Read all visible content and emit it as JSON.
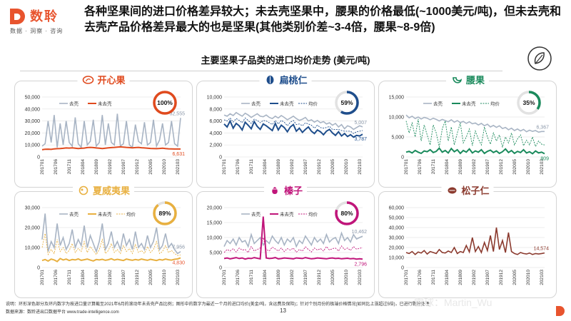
{
  "header": {
    "brand": "数聆",
    "tagline": "数据 · 洞察 · 咨询",
    "headline": "各种坚果间的进口价格差异较大；未去壳坚果中，腰果的价格最低(~1000美元/吨)，但未去壳和去壳产品价格差异最大的也是坚果(其他类别价差~3-4倍，腰果~8-9倍)",
    "subtitle": "主要坚果子品类的进口均价走势 (美元/吨)"
  },
  "colors": {
    "accent": "#e8542e",
    "shelled": "#a8b4c4"
  },
  "x_tick_labels": [
    "201701",
    "201706",
    "201711",
    "201804",
    "201809",
    "201902",
    "201907",
    "201912",
    "202005",
    "202010",
    "202103"
  ],
  "legend": {
    "shelled": "去壳",
    "unshelled": "未去壳",
    "avg": "均价"
  },
  "panels": [
    {
      "id": "pistachio",
      "title": "开心果",
      "icon": "pistachio-icon",
      "color": "#e04a1e",
      "share": "100%",
      "share_pct": 100,
      "has_share": true,
      "ymax": 50000,
      "y_ticks": [
        "50,000",
        "40,000",
        "30,000",
        "20,000",
        "10,000",
        "0"
      ],
      "series": [
        {
          "key": "shelled",
          "values": [
            9000,
            11000,
            30000,
            12000,
            35000,
            8000,
            28000,
            10000,
            30000,
            12000,
            9000,
            33000,
            11000,
            8000,
            30000,
            10000,
            13000,
            31000,
            9000,
            12000,
            35000,
            10000,
            28000,
            12000,
            10000,
            36000,
            9000,
            11000,
            30000,
            10000,
            8000,
            27000,
            13000,
            11000,
            29000,
            10000,
            12000,
            31000,
            9000,
            14000,
            28000,
            10000,
            12000,
            30000,
            11000,
            9000,
            32555
          ]
        },
        {
          "key": "unshelled",
          "values": [
            6000,
            6400,
            6500,
            6300,
            6700,
            6900,
            7000,
            7200,
            7500,
            7400,
            7600,
            7300,
            7000,
            7200,
            7400,
            7800,
            8000,
            7800,
            7500,
            7300,
            7000,
            7300,
            7600,
            7800,
            8000,
            8200,
            8400,
            8200,
            8000,
            7800,
            7600,
            7800,
            8000,
            7700,
            7500,
            7300,
            7100,
            7000,
            6900,
            7100,
            7300,
            7000,
            6800,
            6700,
            6600,
            6600,
            6631
          ]
        }
      ],
      "labels": [
        {
          "text": "32,555",
          "series": "shelled"
        },
        {
          "text": "6,631",
          "series": "unshelled"
        }
      ]
    },
    {
      "id": "walnut",
      "title": "扁桃仁",
      "icon": "almond-icon",
      "color": "#1f4e8c",
      "share": "59%",
      "share_pct": 59,
      "has_share": true,
      "ymax": 10000,
      "y_ticks": [
        "10,000",
        "8,000",
        "6,000",
        "4,000",
        "2,000",
        "0"
      ],
      "series": [
        {
          "key": "shelled",
          "values": [
            7000,
            6800,
            7200,
            6900,
            7400,
            7100,
            6800,
            7300,
            7000,
            6600,
            6900,
            7200,
            6800,
            6700,
            7000,
            6600,
            6400,
            6800,
            6500,
            6900,
            6600,
            6200,
            6500,
            6800,
            6400,
            6100,
            6300,
            6600,
            6000,
            6200,
            5800,
            6100,
            5700,
            5900,
            5500,
            5700,
            5300,
            5600,
            5000,
            5400,
            4700,
            5200,
            5000,
            4600,
            4900,
            5200,
            5007
          ]
        },
        {
          "key": "unshelled",
          "values": [
            5500,
            5000,
            6000,
            4800,
            5600,
            5200,
            4500,
            5800,
            5300,
            4700,
            5900,
            5100,
            4600,
            5500,
            5200,
            4800,
            4400,
            5600,
            4500,
            5300,
            4900,
            4200,
            5000,
            5400,
            4300,
            4800,
            4100,
            4600,
            5000,
            4300,
            3900,
            4500,
            4200,
            3700,
            4300,
            4600,
            4000,
            3600,
            4200,
            3500,
            3900,
            3400,
            3700,
            3300,
            3600,
            3500,
            3787
          ]
        },
        {
          "key": "avg",
          "values": [
            6200,
            6000,
            6500,
            5800,
            6400,
            6100,
            5700,
            6500,
            6100,
            5600,
            6300,
            6100,
            5700,
            6100,
            6000,
            5700,
            5400,
            6100,
            5500,
            6100,
            5800,
            5200,
            5800,
            6100,
            5400,
            5500,
            5200,
            5700,
            5500,
            5300,
            4800,
            5300,
            4900,
            4800,
            4900,
            5100,
            4600,
            4600,
            4600,
            4400,
            4300,
            4300,
            4300,
            3900,
            4200,
            4300,
            4400
          ]
        }
      ],
      "labels": [
        {
          "text": "5,007",
          "series": "shelled"
        },
        {
          "text": "3,787",
          "series": "unshelled"
        }
      ]
    },
    {
      "id": "cashew",
      "title": "腰果",
      "icon": "cashew-icon",
      "color": "#1a8a5c",
      "share": "35%",
      "share_pct": 35,
      "has_share": true,
      "ymax": 15000,
      "y_ticks": [
        "15,000",
        "10,000",
        "5,000",
        "0"
      ],
      "series": [
        {
          "key": "shelled",
          "values": [
            10500,
            9800,
            10200,
            9600,
            10000,
            9500,
            9900,
            9700,
            9300,
            9700,
            9400,
            9000,
            9400,
            9100,
            8800,
            9300,
            8700,
            9100,
            8600,
            8900,
            8400,
            8800,
            8300,
            8500,
            8000,
            8400,
            7800,
            8200,
            7500,
            7900,
            7400,
            7800,
            7100,
            7400,
            6800,
            7200,
            6600,
            7000,
            6500,
            6900,
            6300,
            6700,
            6400,
            6600,
            6200,
            6367,
            6367
          ]
        },
        {
          "key": "unshelled",
          "values": [
            1200,
            1400,
            1000,
            1600,
            1200,
            900,
            1500,
            1300,
            1800,
            1100,
            1400,
            2200,
            1200,
            1600,
            1000,
            2100,
            1300,
            1800,
            900,
            1600,
            1200,
            2000,
            1000,
            1500,
            1200,
            1800,
            900,
            1400,
            1700,
            1100,
            1500,
            900,
            1300,
            2000,
            1100,
            1600,
            900,
            1400,
            1100,
            1800,
            1000,
            1300,
            800,
            1500,
            1000,
            1200,
            809
          ]
        },
        {
          "key": "avg",
          "values": [
            9000,
            6000,
            8500,
            5000,
            9500,
            4000,
            8000,
            5500,
            3000,
            8000,
            6000,
            2500,
            7000,
            9000,
            4000,
            7500,
            3000,
            6000,
            8500,
            3500,
            5000,
            7000,
            2800,
            6500,
            4500,
            3000,
            7500,
            5000,
            3200,
            6000,
            4000,
            5500,
            2500,
            5000,
            3500,
            6000,
            3000,
            4500,
            5500,
            2800,
            4200,
            3000,
            5000,
            2600,
            4000,
            3200,
            3000
          ]
        }
      ],
      "labels": [
        {
          "text": "6,367",
          "series": "shelled"
        },
        {
          "text": "809",
          "series": "unshelled"
        }
      ]
    },
    {
      "id": "macadamia",
      "title": "夏威夷果",
      "icon": "macadamia-icon",
      "color": "#e8b040",
      "share": "89%",
      "share_pct": 89,
      "has_share": true,
      "ymax": 30000,
      "y_ticks": [
        "30,000",
        "20,000",
        "10,000",
        "0"
      ],
      "series": [
        {
          "key": "shelled",
          "values": [
            14000,
            27000,
            8000,
            13000,
            10000,
            22000,
            11000,
            15000,
            9000,
            12000,
            19000,
            10000,
            14000,
            11000,
            21000,
            10000,
            16000,
            12000,
            8000,
            13000,
            22000,
            9000,
            12000,
            18000,
            10000,
            13000,
            9000,
            17000,
            11000,
            14000,
            9000,
            18000,
            10000,
            12000,
            9000,
            16000,
            10000,
            13000,
            20000,
            9000,
            11000,
            17000,
            10000,
            12000,
            9000,
            7000,
            7956
          ]
        },
        {
          "key": "unshelled",
          "values": [
            3500,
            4000,
            3200,
            4200,
            3800,
            3000,
            4500,
            3800,
            4200,
            3500,
            4000,
            3800,
            4300,
            3600,
            3900,
            4200,
            3700,
            3300,
            4000,
            3800,
            4100,
            3600,
            3900,
            4400,
            3700,
            4100,
            3800,
            3500,
            4200,
            3900,
            3600,
            4000,
            3700,
            4200,
            3900,
            3600,
            4100,
            3800,
            3500,
            4000,
            3700,
            4200,
            3900,
            3700,
            4100,
            4300,
            4830
          ]
        },
        {
          "key": "avg",
          "values": [
            10000,
            17000,
            6500,
            9000,
            7000,
            14000,
            8000,
            10000,
            7000,
            8500,
            12000,
            7500,
            9500,
            8000,
            13000,
            7500,
            10500,
            8500,
            6500,
            9000,
            14000,
            7000,
            8500,
            12000,
            7500,
            9000,
            7000,
            11000,
            8000,
            9500,
            7000,
            11500,
            7500,
            8500,
            7000,
            10500,
            7500,
            9000,
            13000,
            7000,
            8000,
            11000,
            7500,
            8500,
            7000,
            6000,
            6300
          ]
        }
      ],
      "labels": [
        {
          "text": "7,956",
          "series": "shelled"
        },
        {
          "text": "4,830",
          "series": "unshelled"
        }
      ]
    },
    {
      "id": "hazelnut",
      "title": "榛子",
      "icon": "hazelnut-icon",
      "color": "#c0157a",
      "share": "80%",
      "share_pct": 80,
      "has_share": true,
      "ymax": 20000,
      "y_ticks": [
        "20,000",
        "15,000",
        "10,000",
        "5,000",
        "0"
      ],
      "series": [
        {
          "key": "shelled",
          "values": [
            7000,
            9000,
            8000,
            9500,
            7500,
            10000,
            8500,
            9000,
            7000,
            11000,
            8000,
            9000,
            10000,
            7500,
            9000,
            8000,
            10500,
            9000,
            8000,
            10000,
            7500,
            9500,
            8500,
            10000,
            7000,
            9000,
            8000,
            10500,
            9000,
            7500,
            10000,
            8500,
            9500,
            8000,
            11000,
            8500,
            9500,
            10000,
            8000,
            11500,
            9000,
            10000,
            8500,
            11000,
            9500,
            10000,
            10462
          ]
        },
        {
          "key": "unshelled",
          "values": [
            3000,
            3200,
            2900,
            3100,
            3300,
            3000,
            3200,
            2800,
            3100,
            3000,
            3300,
            3100,
            2900,
            17000,
            3200,
            3000,
            3100,
            3300,
            2900,
            3000,
            3200,
            3100,
            3000,
            2900,
            3200,
            3100,
            3000,
            3300,
            3100,
            2900,
            3000,
            3200,
            3100,
            3000,
            2900,
            3100,
            3200,
            3000,
            3100,
            2900,
            3000,
            3100,
            2900,
            3000,
            2800,
            2900,
            2796
          ]
        },
        {
          "key": "avg",
          "values": [
            5000,
            6000,
            5500,
            6300,
            5200,
            6500,
            5800,
            6000,
            5000,
            7000,
            5500,
            6000,
            6500,
            10000,
            6000,
            5500,
            6800,
            6200,
            5500,
            6500,
            5300,
            6300,
            5800,
            6500,
            5100,
            6000,
            5500,
            6900,
            6000,
            5200,
            6500,
            5800,
            6300,
            5500,
            7000,
            5800,
            6300,
            6500,
            5500,
            7200,
            6000,
            6500,
            5700,
            7000,
            6100,
            6400,
            6600
          ]
        }
      ],
      "labels": [
        {
          "text": "10,462",
          "series": "shelled"
        },
        {
          "text": "2,796",
          "series": "unshelled"
        }
      ]
    },
    {
      "id": "pinenut",
      "title": "松子仁",
      "icon": "pinenut-icon",
      "color": "#8b3a2e",
      "share": "",
      "share_pct": 0,
      "has_share": false,
      "ymax": 60000,
      "y_ticks": [
        "60,000",
        "50,000",
        "40,000",
        "30,000",
        "20,000",
        "10,000",
        "0"
      ],
      "series": [
        {
          "key": "shelled",
          "values": [
            15000,
            14000,
            16000,
            13000,
            15500,
            14500,
            17000,
            13500,
            16000,
            15000,
            14000,
            18000,
            15000,
            14500,
            16500,
            15000,
            20000,
            14000,
            16000,
            15000,
            22000,
            15500,
            30000,
            16000,
            21000,
            15000,
            25000,
            17000,
            32000,
            16000,
            40000,
            18000,
            27000,
            15000,
            35000,
            16000,
            14000,
            13000,
            15000,
            14000,
            13500,
            14500,
            13000,
            14000,
            13500,
            14000,
            14574
          ]
        }
      ],
      "labels": [
        {
          "text": "14,574",
          "series": "shelled"
        }
      ]
    }
  ],
  "footnote": "说明：环形深色部分及环内数字为按进口量计算截至2021年6月的滚动年未去壳产品比例；图形中的数字为最近一个月的进口均价(美金/吨，含运费及保险)；针对个别月份的极端价格情况(如同比上涨超过5倍)，已进行剔除处理",
  "source": "数据来源：数聆进出口数据平台 www.trade-intelligence.com",
  "page_number": "13",
  "watermark": "雪球：Martin_Wu"
}
